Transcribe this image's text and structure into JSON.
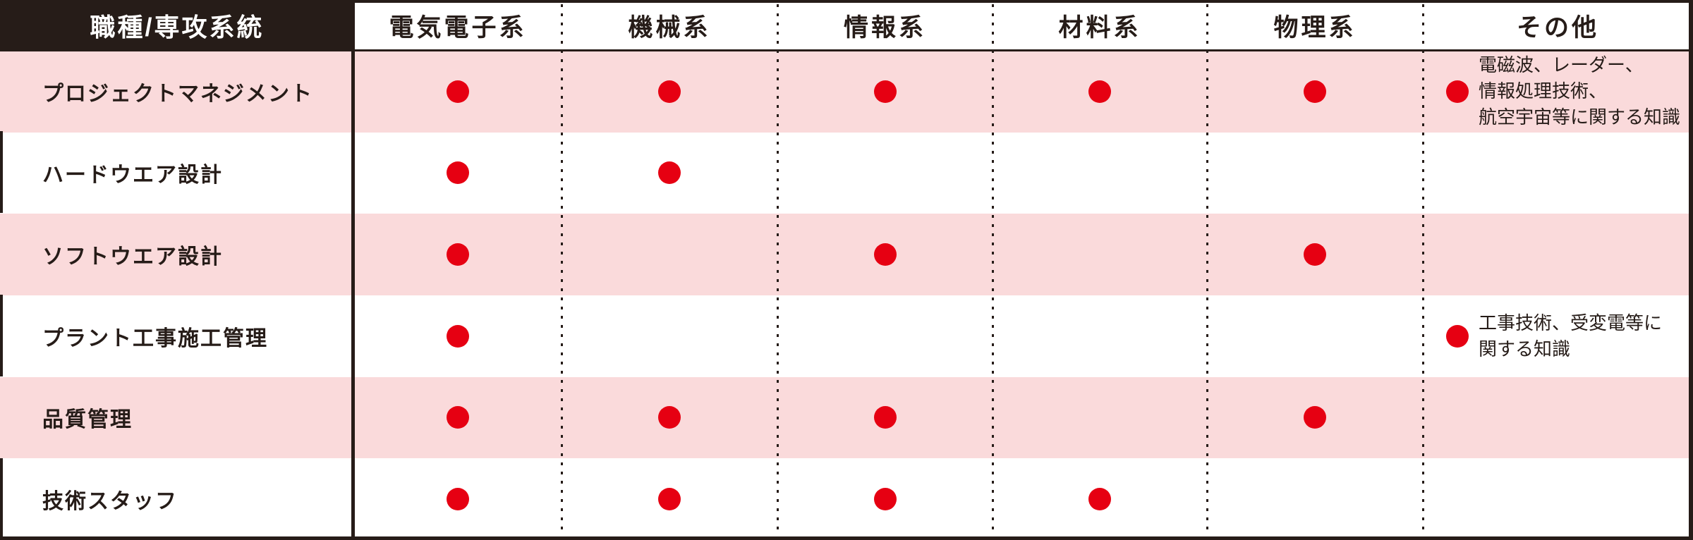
{
  "chart_data": {
    "type": "table",
    "corner_label": "職種/専攻系統",
    "columns": [
      "電気電子系",
      "機械系",
      "情報系",
      "材料系",
      "物理系",
      "その他"
    ],
    "rows": [
      {
        "label": "プロジェクトマネジメント",
        "marks": [
          true,
          true,
          true,
          true,
          true,
          true
        ],
        "other_note_lines": [
          "電磁波、レーダー、",
          "情報処理技術、",
          "航空宇宙等に関する知識"
        ]
      },
      {
        "label": "ハードウエア設計",
        "marks": [
          true,
          true,
          false,
          false,
          false,
          false
        ]
      },
      {
        "label": "ソフトウエア設計",
        "marks": [
          true,
          false,
          true,
          false,
          true,
          false
        ]
      },
      {
        "label": "プラント工事施工管理",
        "marks": [
          true,
          false,
          false,
          false,
          false,
          true
        ],
        "other_note_lines": [
          "工事技術、受変電等に",
          "関する知識"
        ]
      },
      {
        "label": "品質管理",
        "marks": [
          true,
          true,
          true,
          false,
          true,
          false
        ]
      },
      {
        "label": "技術スタッフ",
        "marks": [
          true,
          true,
          true,
          true,
          false,
          false
        ]
      }
    ],
    "layout_hints": {
      "row_stripe_order": [
        "pink",
        "white",
        "pink",
        "white",
        "pink",
        "white"
      ],
      "mark_symbol": "filled-circle"
    }
  },
  "colors": {
    "header_bg": "#261c18",
    "text": "#261c18",
    "row_pink": "#fadadb",
    "dot_red": "#e60012",
    "line": "#261c18"
  }
}
